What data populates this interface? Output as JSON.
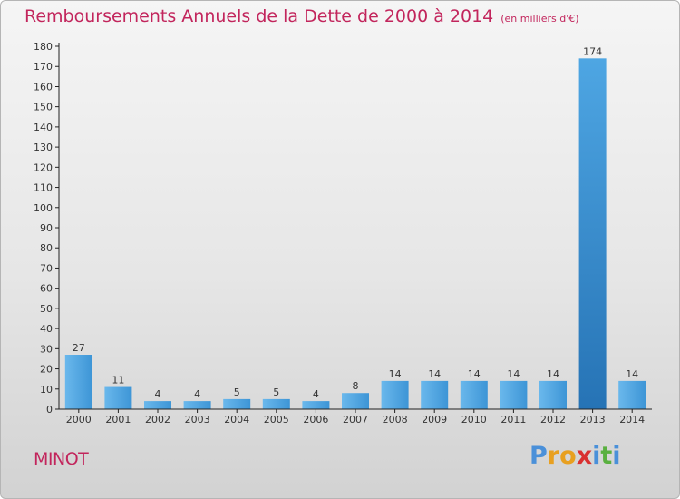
{
  "header": {
    "title": "Remboursements Annuels de la Dette de 2000 à 2014",
    "unit": "(en milliers d'€)"
  },
  "footer": {
    "commune": "MINOT",
    "logo": [
      "P",
      "r",
      "o",
      "x",
      "i",
      "t",
      "i"
    ]
  },
  "colors": {
    "title": "#c2255c",
    "bar_light": "#5aaee6",
    "bar_dark": "#2a7fc4",
    "logo": [
      "#4a90d9",
      "#e8a020",
      "#e8a020",
      "#d93030",
      "#4a90d9",
      "#5ab040",
      "#4a90d9"
    ]
  },
  "chart_data": {
    "type": "bar",
    "title": "Remboursements Annuels de la Dette de 2000 à 2014",
    "subtitle": "(en milliers d'€)",
    "categories": [
      "2000",
      "2001",
      "2002",
      "2003",
      "2004",
      "2005",
      "2006",
      "2007",
      "2008",
      "2009",
      "2010",
      "2011",
      "2012",
      "2013",
      "2014"
    ],
    "values": [
      27,
      11,
      4,
      4,
      5,
      5,
      4,
      8,
      14,
      14,
      14,
      14,
      14,
      174,
      14
    ],
    "ylim": [
      0,
      180
    ],
    "yticks": [
      0,
      10,
      20,
      30,
      40,
      50,
      60,
      70,
      80,
      90,
      100,
      110,
      120,
      130,
      140,
      150,
      160,
      170,
      180
    ],
    "grid": false,
    "legend": "none"
  }
}
